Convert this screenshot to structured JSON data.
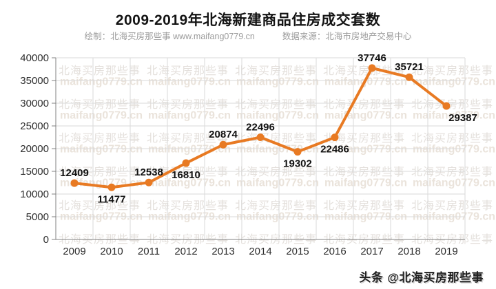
{
  "header": {
    "title": "2009-2019年北海新建商品住房成交套数",
    "subtitle_left": "绘制：北海买房那些事 www.maifang0779.cn",
    "subtitle_right": "数据来源：北海市房地产交易中心"
  },
  "watermark": {
    "line1": "北海买房那些事",
    "line2": "maifang0779.cn"
  },
  "footer": {
    "brand": "头条",
    "handle": "@北海买房那些事"
  },
  "chart_data": {
    "type": "line",
    "title": "2009-2019年北海新建商品住房成交套数",
    "categories": [
      "2009",
      "2010",
      "2011",
      "2012",
      "2013",
      "2014",
      "2015",
      "2016",
      "2017",
      "2018",
      "2019"
    ],
    "values": [
      12409,
      11477,
      12538,
      16810,
      20874,
      22496,
      19302,
      22486,
      37746,
      35721,
      29387
    ],
    "xlabel": "",
    "ylabel": "",
    "ylim": [
      0,
      40000
    ],
    "ytick_step": 5000,
    "grid": true,
    "legend": "none",
    "line_color": "#e87a23",
    "marker": "circle",
    "label_placement": [
      "above",
      "below",
      "above",
      "below",
      "above",
      "above",
      "below",
      "below",
      "above",
      "above",
      "below-right"
    ]
  },
  "colors": {
    "gridline": "#dadada",
    "axis": "#808080",
    "tick_label": "#2e2e2e",
    "data_label": "#111111",
    "subtitle": "#9b9b9b",
    "watermark_cn": "#e4e0dc",
    "watermark_url": "#eae3db"
  }
}
